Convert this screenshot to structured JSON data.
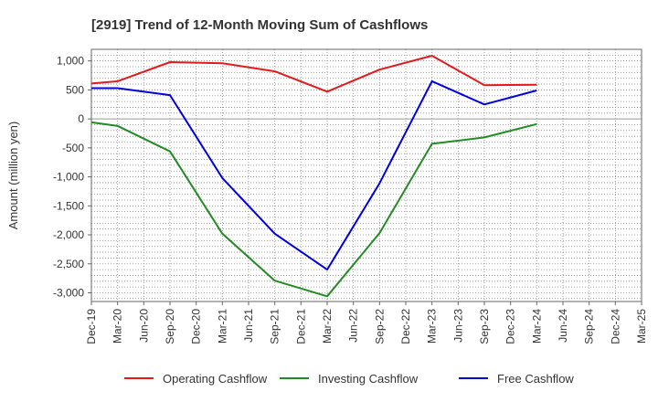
{
  "chart_data": {
    "type": "line",
    "title": "[2919]  Trend of 12-Month Moving Sum of Cashflows",
    "xlabel": "",
    "ylabel": "Amount (million yen)",
    "ylim": [
      -3150,
      1200
    ],
    "yticks": [
      1000,
      500,
      0,
      -500,
      -1000,
      -1500,
      -2000,
      -2500,
      -3000
    ],
    "ytick_labels": [
      "1,000",
      "500",
      "0",
      "-500",
      "-1,000",
      "-1,500",
      "-2,000",
      "-2,500",
      "-3,000"
    ],
    "categories": [
      "Dec-19",
      "Mar-20",
      "Jun-20",
      "Sep-20",
      "Dec-20",
      "Mar-21",
      "Jun-21",
      "Sep-21",
      "Dec-21",
      "Mar-22",
      "Jun-22",
      "Sep-22",
      "Dec-22",
      "Mar-23",
      "Jun-23",
      "Sep-23",
      "Dec-23",
      "Mar-24",
      "Jun-24",
      "Sep-24",
      "Dec-24",
      "Mar-25"
    ],
    "grid": true,
    "legend_position": "bottom",
    "series": [
      {
        "name": "Operating Cashflow",
        "color": "#e31a1c",
        "values": [
          610,
          650,
          null,
          980,
          null,
          960,
          null,
          820,
          null,
          470,
          null,
          850,
          null,
          1090,
          null,
          580,
          null,
          590,
          null,
          null,
          null,
          null
        ]
      },
      {
        "name": "Investing Cashflow",
        "color": "#238b23",
        "values": [
          -60,
          -120,
          null,
          -560,
          null,
          -1980,
          null,
          -2790,
          null,
          -3060,
          null,
          -1970,
          null,
          -430,
          null,
          -320,
          null,
          -90,
          null,
          null,
          null,
          null
        ]
      },
      {
        "name": "Free Cashflow",
        "color": "#0000dd",
        "values": [
          530,
          530,
          null,
          410,
          null,
          -1020,
          null,
          -1980,
          null,
          -2600,
          null,
          -1110,
          null,
          650,
          null,
          250,
          null,
          490,
          null,
          null,
          null,
          null
        ]
      }
    ]
  }
}
